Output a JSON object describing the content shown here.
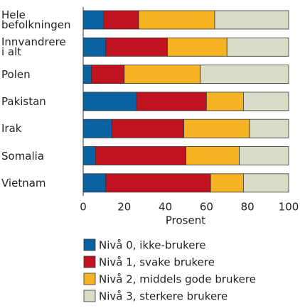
{
  "chart_data": {
    "type": "stacked-barh",
    "categories": [
      "Hele\nbefolkningen",
      "Innvandrere\ni alt",
      "Polen",
      "Pakistan",
      "Irak",
      "Somalia",
      "Vietnam"
    ],
    "series": [
      {
        "name": "Nivå 0, ikke-brukere",
        "color": "#0b62a3",
        "values": [
          10,
          11,
          4,
          26,
          14,
          6,
          11
        ]
      },
      {
        "name": "Nivå 1, svake brukere",
        "color": "#c1121f",
        "values": [
          17,
          30,
          16,
          34,
          35,
          44,
          51
        ]
      },
      {
        "name": "Nivå 2, middels gode brukere",
        "color": "#f5b324",
        "values": [
          37,
          29,
          37,
          18,
          32,
          26,
          16
        ]
      },
      {
        "name": "Nivå 3, sterkere brukere",
        "color": "#d9dcc6",
        "values": [
          36,
          30,
          43,
          22,
          19,
          24,
          22
        ]
      }
    ],
    "xlabel": "Prosent",
    "xlim": [
      0,
      100
    ],
    "xticks": [
      0,
      20,
      40,
      60,
      80,
      100
    ]
  }
}
